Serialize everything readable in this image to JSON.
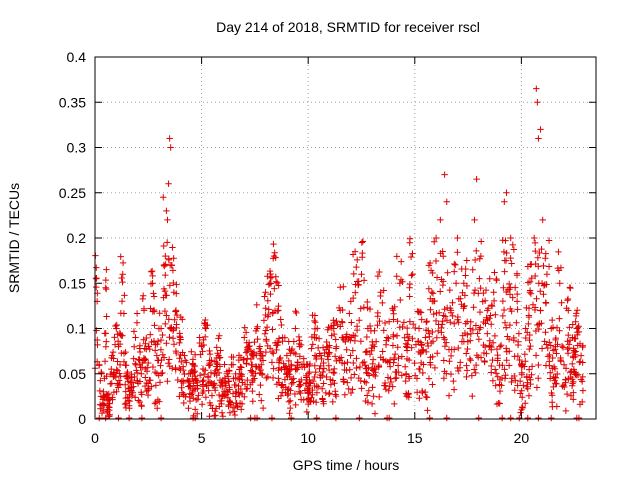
{
  "chart_data": {
    "type": "scatter",
    "title": "Day 214 of 2018, SRMTID for receiver rscl",
    "xlabel": "GPS time / hours",
    "ylabel": "SRMTID / TECUs",
    "xlim": [
      0,
      23.5
    ],
    "ylim": [
      0,
      0.4
    ],
    "x_ticks": [
      0,
      5,
      10,
      15,
      20
    ],
    "x_tick_labels": [
      "0",
      "5",
      "10",
      "15",
      "20"
    ],
    "y_ticks": [
      0,
      0.05,
      0.1,
      0.15,
      0.2,
      0.25,
      0.3,
      0.35,
      0.4
    ],
    "y_tick_labels": [
      "0",
      "0.05",
      "0.1",
      "0.15",
      "0.2",
      "0.25",
      "0.3",
      "0.35",
      "0.4"
    ],
    "grid": true,
    "marker": "plus",
    "series": [
      {
        "name": "SRMTID",
        "color": "#e00000",
        "x": [
          0.05,
          0.1,
          0.2,
          0.3,
          0.4,
          0.5,
          0.6,
          0.8,
          1.0,
          1.1,
          1.3,
          1.5,
          1.7,
          1.9,
          2.1,
          2.3,
          2.5,
          2.7,
          2.9,
          3.1,
          3.2,
          3.3,
          3.35,
          3.4,
          3.45,
          3.5,
          3.55,
          3.6,
          3.7,
          3.8,
          4.0,
          4.2,
          4.4,
          4.6,
          4.8,
          5.0,
          5.2,
          5.4,
          5.6,
          5.8,
          6.0,
          6.2,
          6.4,
          6.6,
          6.8,
          7.0,
          7.2,
          7.4,
          7.6,
          7.8,
          8.0,
          8.2,
          8.4,
          8.6,
          8.8,
          9.0,
          9.2,
          9.4,
          9.6,
          9.8,
          10.0,
          10.3,
          10.6,
          10.9,
          11.2,
          11.5,
          11.8,
          12.0,
          12.2,
          12.5,
          12.8,
          13.1,
          13.4,
          13.7,
          14.0,
          14.3,
          14.6,
          14.9,
          15.2,
          15.5,
          15.8,
          16.0,
          16.2,
          16.4,
          16.5,
          16.7,
          17.0,
          17.3,
          17.6,
          17.8,
          17.9,
          18.1,
          18.4,
          18.7,
          19.0,
          19.2,
          19.3,
          19.5,
          19.8,
          20.0,
          20.2,
          20.4,
          20.6,
          20.7,
          20.75,
          20.8,
          20.9,
          21.0,
          21.2,
          21.4,
          21.6,
          21.8,
          22.0,
          22.2,
          22.4,
          22.6,
          22.8
        ],
        "y": [
          0.155,
          0.13,
          0.06,
          0.05,
          0.03,
          0.145,
          0.02,
          0.07,
          0.1,
          0.08,
          0.16,
          0.05,
          0.04,
          0.09,
          0.06,
          0.12,
          0.08,
          0.15,
          0.07,
          0.1,
          0.245,
          0.18,
          0.23,
          0.22,
          0.26,
          0.31,
          0.3,
          0.17,
          0.14,
          0.12,
          0.09,
          0.07,
          0.05,
          0.06,
          0.04,
          0.08,
          0.1,
          0.06,
          0.05,
          0.07,
          0.04,
          0.05,
          0.06,
          0.03,
          0.05,
          0.09,
          0.08,
          0.07,
          0.1,
          0.06,
          0.14,
          0.15,
          0.18,
          0.12,
          0.09,
          0.07,
          0.06,
          0.1,
          0.08,
          0.06,
          0.05,
          0.09,
          0.07,
          0.08,
          0.1,
          0.12,
          0.09,
          0.13,
          0.185,
          0.16,
          0.1,
          0.08,
          0.14,
          0.09,
          0.11,
          0.15,
          0.08,
          0.16,
          0.1,
          0.09,
          0.14,
          0.2,
          0.22,
          0.27,
          0.24,
          0.12,
          0.2,
          0.15,
          0.1,
          0.22,
          0.265,
          0.18,
          0.12,
          0.14,
          0.08,
          0.24,
          0.25,
          0.2,
          0.13,
          0.06,
          0.1,
          0.14,
          0.2,
          0.365,
          0.35,
          0.31,
          0.32,
          0.22,
          0.16,
          0.1,
          0.08,
          0.15,
          0.06,
          0.12,
          0.09,
          0.1,
          0.07
        ]
      }
    ],
    "zero_markers_x": [
      0.2,
      0.5,
      1.1,
      1.6,
      2.2,
      3.1,
      4.6,
      4.7,
      7.3,
      7.5,
      7.6,
      8.3,
      9.2,
      10.4,
      11.3,
      12.4,
      13.7,
      13.8,
      15.7,
      16.5,
      18.0,
      19.1,
      19.5,
      19.9,
      20.3,
      20.8,
      21.4,
      22.6,
      22.7
    ]
  }
}
